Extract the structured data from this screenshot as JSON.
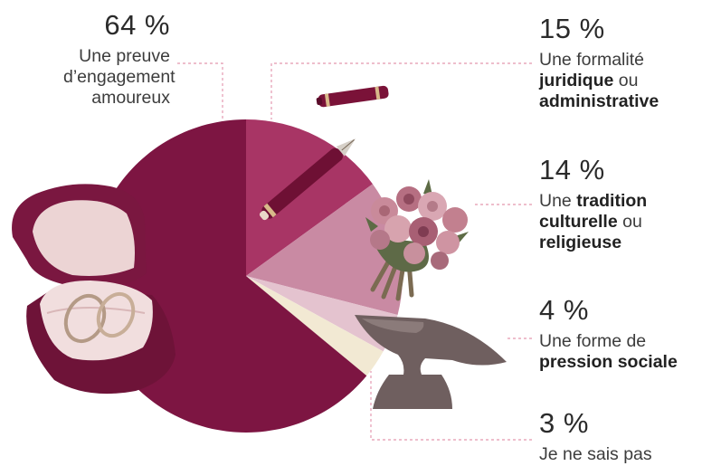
{
  "chart_data": {
    "type": "pie",
    "values": [
      64,
      15,
      14,
      4,
      3
    ],
    "labels": [
      "Une preuve d’engagement amoureux",
      "Une formalité juridique ou administrative",
      "Une tradition culturelle ou religieuse",
      "Une forme de pression sociale",
      "Je ne sais pas"
    ],
    "value_labels": [
      "64 %",
      "15 %",
      "14 %",
      "4 %",
      "3 %"
    ],
    "colors": [
      "#7d1542",
      "#a83565",
      "#c98aa3",
      "#e4c3cf",
      "#f2e9d3"
    ],
    "callout_color": "#e8a8bc"
  },
  "labels": [
    {
      "pct": "64 %",
      "lines": [
        "Une preuve",
        "d’engagement",
        "amoureux"
      ]
    },
    {
      "pct": "15 %",
      "l1": "Une formalité",
      "l2b": "juridique",
      "l2": " ou",
      "l3b": "administrative"
    },
    {
      "pct": "14 %",
      "l1": "Une ",
      "l1b": "tradition",
      "l2b": "culturelle",
      "l2": " ou",
      "l3b": "religieuse"
    },
    {
      "pct": "4 %",
      "l1": "Une forme de",
      "l2b": "pression sociale"
    },
    {
      "pct": "3 %",
      "l1": "Je ne sais pas"
    }
  ],
  "illustrations": [
    "ring-box-icon",
    "fountain-pen-icon",
    "flower-bouquet-icon",
    "anvil-icon"
  ]
}
